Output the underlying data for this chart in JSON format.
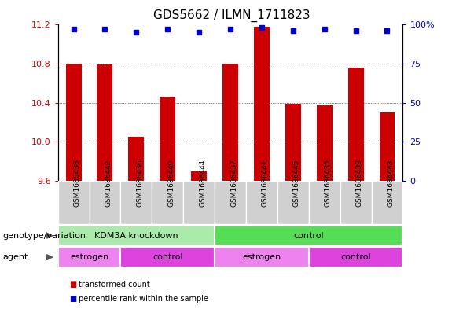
{
  "title": "GDS5662 / ILMN_1711823",
  "samples": [
    "GSM1686438",
    "GSM1686442",
    "GSM1686436",
    "GSM1686440",
    "GSM1686444",
    "GSM1686437",
    "GSM1686441",
    "GSM1686445",
    "GSM1686435",
    "GSM1686439",
    "GSM1686443"
  ],
  "bar_values": [
    10.8,
    10.79,
    10.05,
    10.46,
    9.7,
    10.8,
    11.18,
    10.39,
    10.37,
    10.76,
    10.3
  ],
  "percentile_values": [
    97,
    97,
    95,
    97,
    95,
    97,
    98,
    96,
    97,
    96,
    96
  ],
  "bar_color": "#cc0000",
  "dot_color": "#0000cc",
  "ylim_left": [
    9.6,
    11.2
  ],
  "ylim_right": [
    0,
    100
  ],
  "yticks_left": [
    9.6,
    10.0,
    10.4,
    10.8,
    11.2
  ],
  "yticks_right": [
    0,
    25,
    50,
    75,
    100
  ],
  "ytick_labels_right": [
    "0",
    "25",
    "50",
    "75",
    "100%"
  ],
  "gridlines": [
    10.0,
    10.4,
    10.8
  ],
  "geno_groups": [
    {
      "label": "KDM3A knockdown",
      "start": 0,
      "end": 5,
      "color": "#aaeaaa"
    },
    {
      "label": "control",
      "start": 5,
      "end": 11,
      "color": "#55dd55"
    }
  ],
  "agent_groups": [
    {
      "label": "estrogen",
      "start": 0,
      "end": 2,
      "color": "#ee82ee"
    },
    {
      "label": "control",
      "start": 2,
      "end": 5,
      "color": "#dd44dd"
    },
    {
      "label": "estrogen",
      "start": 5,
      "end": 8,
      "color": "#ee82ee"
    },
    {
      "label": "control",
      "start": 8,
      "end": 11,
      "color": "#dd44dd"
    }
  ],
  "tick_label_color_left": "#cc0000",
  "tick_label_color_right": "#0000cc",
  "bar_width": 0.5,
  "genotype_label": "genotype/variation",
  "agent_label": "agent",
  "legend_items": [
    {
      "label": "transformed count",
      "color": "#cc0000"
    },
    {
      "label": "percentile rank within the sample",
      "color": "#0000cc"
    }
  ]
}
